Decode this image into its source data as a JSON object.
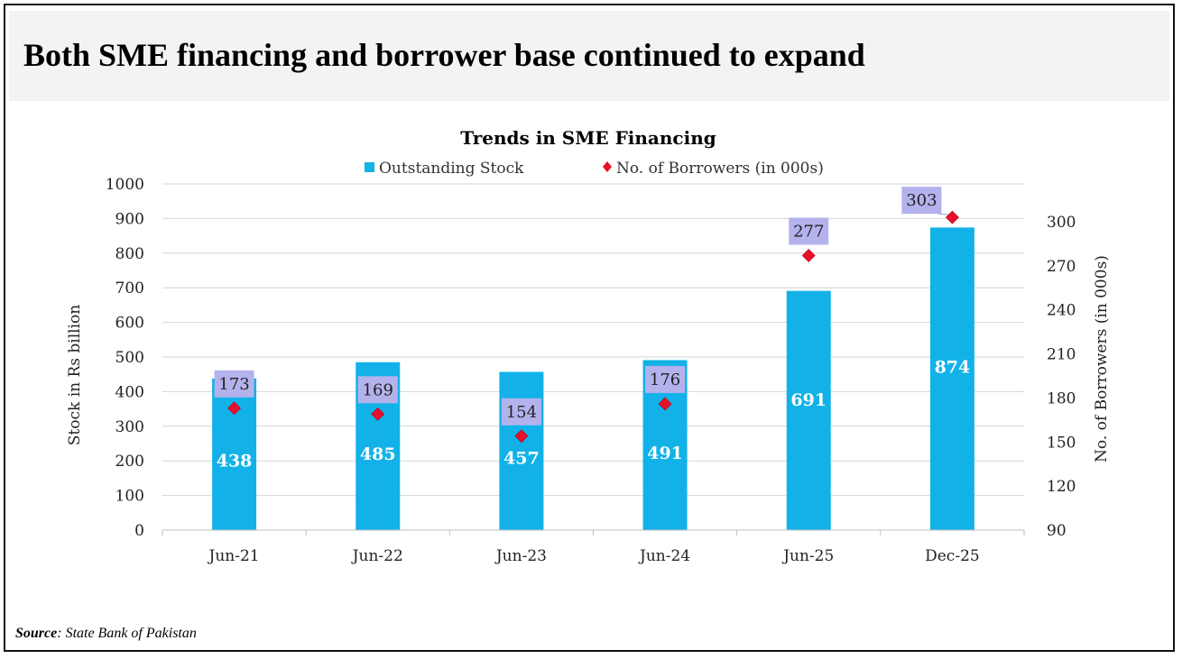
{
  "headline": "Both SME financing and borrower base continued to expand",
  "source": {
    "label": "Source",
    "text": ": State Bank of Pakistan"
  },
  "chart_data": {
    "type": "bar",
    "title": "Trends in SME Financing",
    "categories": [
      "Jun-21",
      "Jun-22",
      "Jun-23",
      "Jun-24",
      "Jun-25",
      "Dec-25"
    ],
    "series": [
      {
        "name": "Outstanding Stock",
        "type": "bar",
        "axis": "left",
        "color": "#12b2e8",
        "values": [
          438,
          485,
          457,
          491,
          691,
          874
        ],
        "labels": [
          "438",
          "485",
          "457",
          "491",
          "691",
          "874"
        ]
      },
      {
        "name": "No. of Borrowers (in 000s)",
        "type": "scatter",
        "axis": "right",
        "color": "#e8102a",
        "values": [
          173,
          169,
          154,
          176,
          277,
          303
        ],
        "labels": [
          "173",
          "169",
          "154",
          "176",
          "277",
          "303"
        ]
      }
    ],
    "ylabel": "Stock in Rs billion",
    "ylim": [
      0,
      1000
    ],
    "yticks": [
      0,
      100,
      200,
      300,
      400,
      500,
      600,
      700,
      800,
      900,
      1000
    ],
    "y2label": "No. of Borrowers (in 000s)",
    "y2lim": [
      90,
      320
    ],
    "y2ticks": [
      90,
      120,
      150,
      180,
      210,
      240,
      270,
      300
    ],
    "grid": true,
    "legend": "top-center",
    "label_box_color": "#b3b2ec"
  }
}
